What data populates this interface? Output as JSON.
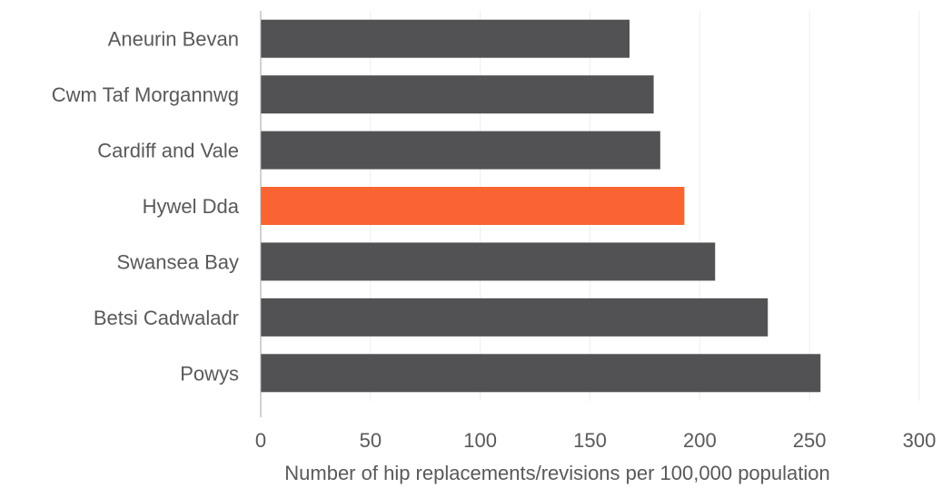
{
  "chart_data": {
    "type": "bar",
    "orientation": "horizontal",
    "categories": [
      "Aneurin Bevan",
      "Cwm Taf Morgannwg",
      "Cardiff and Vale",
      "Hywel Dda",
      "Swansea Bay",
      "Betsi Cadwaladr",
      "Powys"
    ],
    "values": [
      168,
      179,
      182,
      193,
      207,
      231,
      255
    ],
    "highlight_category": "Hywel Dda",
    "xlabel": "Number of hip replacements/revisions per 100,000 population",
    "ylabel": "",
    "xlim": [
      0,
      300
    ],
    "xticks": [
      "0",
      "50",
      "100",
      "150",
      "200",
      "250",
      "300"
    ],
    "grid": "vertical",
    "colors": {
      "bar": "#525254",
      "highlight": "#FA6432",
      "grid": "#eeeeee",
      "axis": "#a6a6a6",
      "text": "#595959"
    }
  }
}
